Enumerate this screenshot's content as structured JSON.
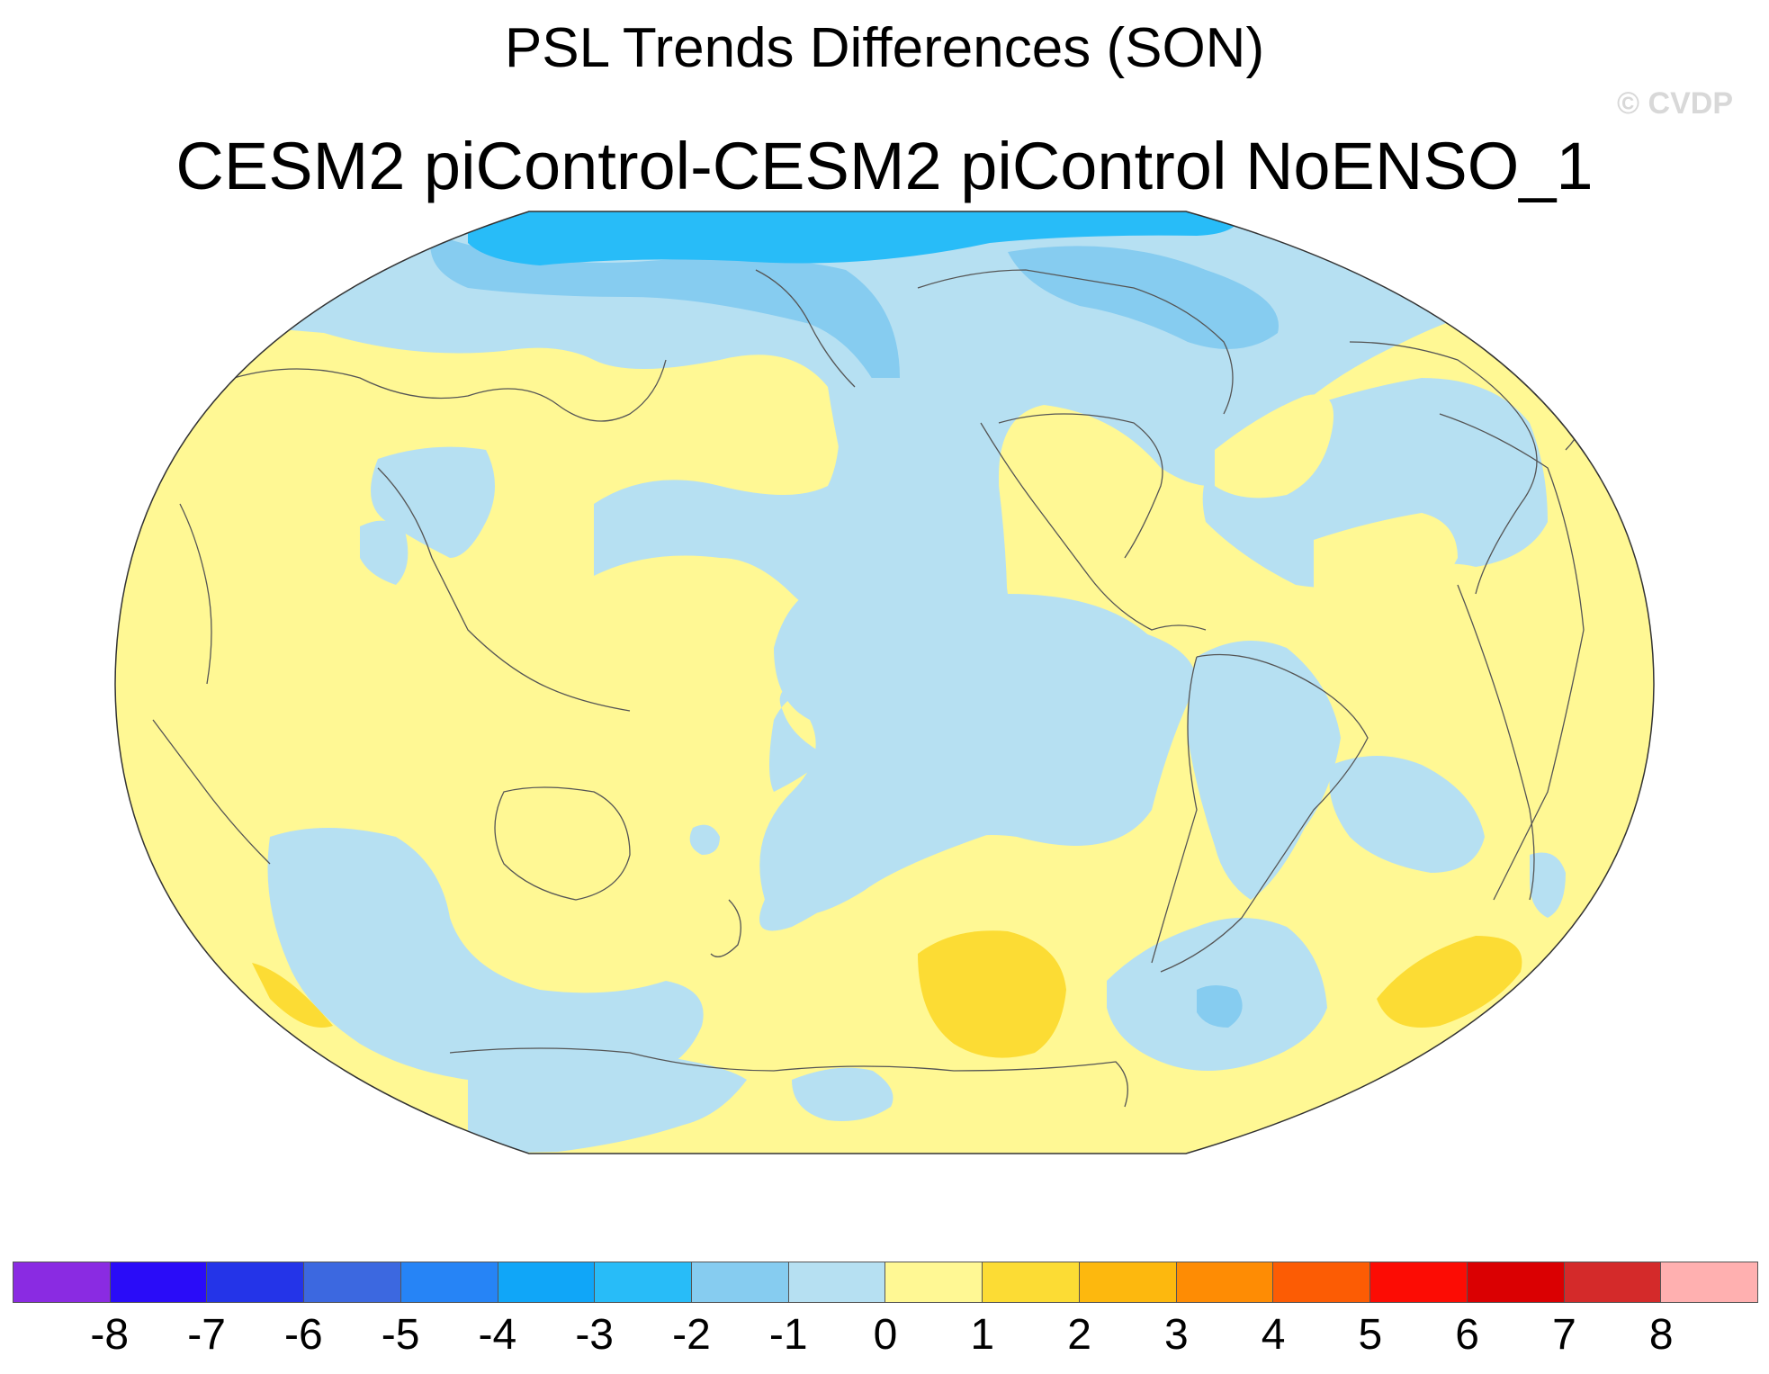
{
  "title": "PSL Trends Differences (SON)",
  "subtitle": "CESM2 piControl-CESM2 piControl NoENSO_1",
  "watermark": "© CVDP",
  "colors": {
    "ocean_bg": "#fff894",
    "neg1": "#b6e0f2",
    "neg2": "#86ccf0",
    "neg3": "#28bcf8",
    "pos2": "#fcdc34",
    "coast": "#555555"
  },
  "colorbar": {
    "colors": [
      "#8a2be2",
      "#2a0cf8",
      "#2434e8",
      "#3c68e0",
      "#2684f6",
      "#10a6f8",
      "#28bcf8",
      "#86ccf0",
      "#b6e0f2",
      "#fff894",
      "#fcdc34",
      "#fdb80e",
      "#fe8c04",
      "#fc5c04",
      "#fc0c04",
      "#da0002",
      "#d42a2a",
      "#ffb0b0"
    ],
    "labels": [
      "-8",
      "-7",
      "-6",
      "-5",
      "-4",
      "-3",
      "-2",
      "-1",
      "0",
      "1",
      "2",
      "3",
      "4",
      "5",
      "6",
      "7",
      "8"
    ]
  }
}
